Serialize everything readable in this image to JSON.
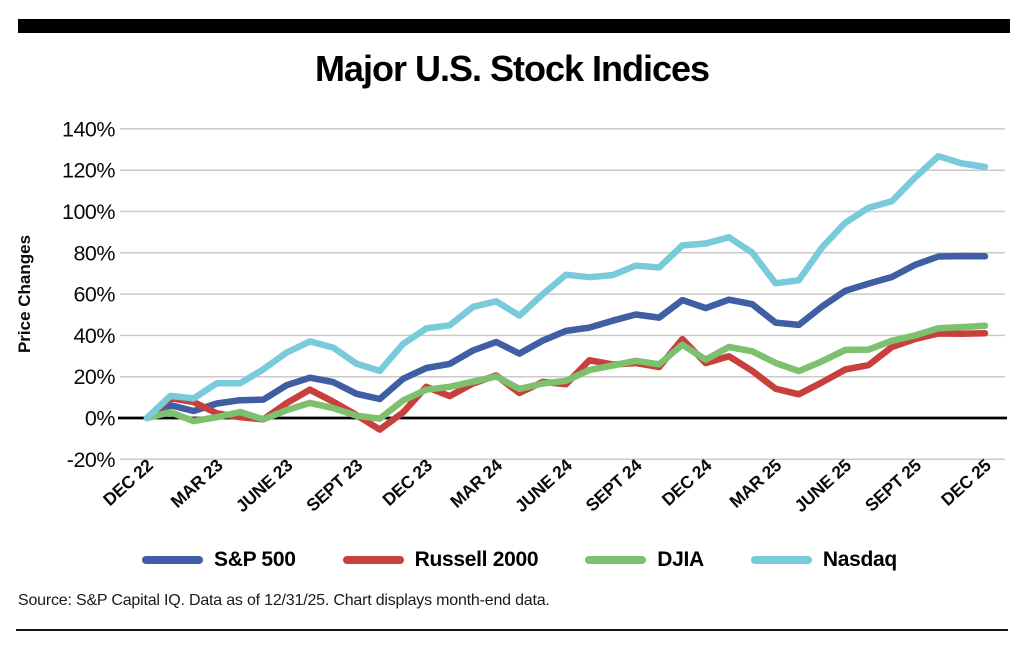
{
  "page": {
    "title": "Major U.S. Stock Indices",
    "source_note": "Source: S&P Capital IQ. Data as of 12/31/25. Chart displays month-end data."
  },
  "chart_data": {
    "type": "line",
    "title": "Major U.S. Stock Indices",
    "xlabel": "",
    "ylabel": "Price Changes",
    "ylim": [
      -20,
      140
    ],
    "yticks": [
      140,
      120,
      100,
      80,
      60,
      40,
      20,
      0,
      -20
    ],
    "ytick_suffix": "%",
    "grid": true,
    "zero_line": true,
    "legend_position": "bottom",
    "x_tick_labels": [
      "DEC 22",
      "MAR 23",
      "JUNE 23",
      "SEPT 23",
      "DEC 23",
      "MAR 24",
      "JUNE 24",
      "SEPT 24",
      "DEC 24",
      "MAR 25",
      "JUNE 25",
      "SEPT 25",
      "DEC 25"
    ],
    "points_per_tick": 3,
    "series": [
      {
        "name": "S&P 500",
        "color": "#3F5EA3",
        "values": [
          0,
          6.2,
          3.4,
          7.0,
          8.6,
          8.9,
          15.9,
          19.5,
          17.4,
          11.7,
          9.2,
          19.0,
          24.2,
          26.2,
          32.7,
          36.8,
          31.2,
          37.5,
          42.2,
          43.8,
          47.1,
          50.1,
          48.6,
          57.1,
          53.2,
          57.3,
          55.1,
          46.2,
          45.1,
          54.0,
          61.6,
          65.1,
          68.3,
          74.2,
          78.2,
          78.4,
          78.3
        ]
      },
      {
        "name": "Russell 2000",
        "color": "#C8403C",
        "values": [
          0,
          9.7,
          7.7,
          2.3,
          0.4,
          -0.7,
          7.2,
          13.7,
          7.9,
          1.4,
          -5.6,
          2.7,
          15.1,
          10.6,
          16.7,
          20.6,
          12.1,
          17.5,
          16.3,
          28.0,
          25.9,
          26.6,
          24.7,
          38.2,
          26.6,
          29.9,
          22.8,
          14.2,
          11.5,
          17.3,
          23.5,
          25.6,
          34.4,
          38.3,
          40.9,
          40.8,
          41.0
        ]
      },
      {
        "name": "DJIA",
        "color": "#7DC06E",
        "values": [
          0,
          2.8,
          -1.5,
          0.4,
          2.9,
          -0.7,
          3.8,
          7.3,
          4.8,
          1.1,
          -0.3,
          8.5,
          13.7,
          15.1,
          17.6,
          20.1,
          14.1,
          16.7,
          18.0,
          23.2,
          25.4,
          27.7,
          26.0,
          35.5,
          28.3,
          34.4,
          32.3,
          26.7,
          22.7,
          27.5,
          33.0,
          33.1,
          37.4,
          40.0,
          43.5,
          44.0,
          44.7
        ]
      },
      {
        "name": "Nasdaq",
        "color": "#79CBDC",
        "values": [
          0,
          10.7,
          9.5,
          16.8,
          16.8,
          23.6,
          31.7,
          37.1,
          34.1,
          26.3,
          22.8,
          35.9,
          43.4,
          44.9,
          53.8,
          56.5,
          49.6,
          59.9,
          69.4,
          68.2,
          69.2,
          73.8,
          72.9,
          83.6,
          84.5,
          87.5,
          80.1,
          65.3,
          66.7,
          82.6,
          94.6,
          101.8,
          105.0,
          116.5,
          126.8,
          123.3,
          121.6
        ]
      }
    ]
  }
}
